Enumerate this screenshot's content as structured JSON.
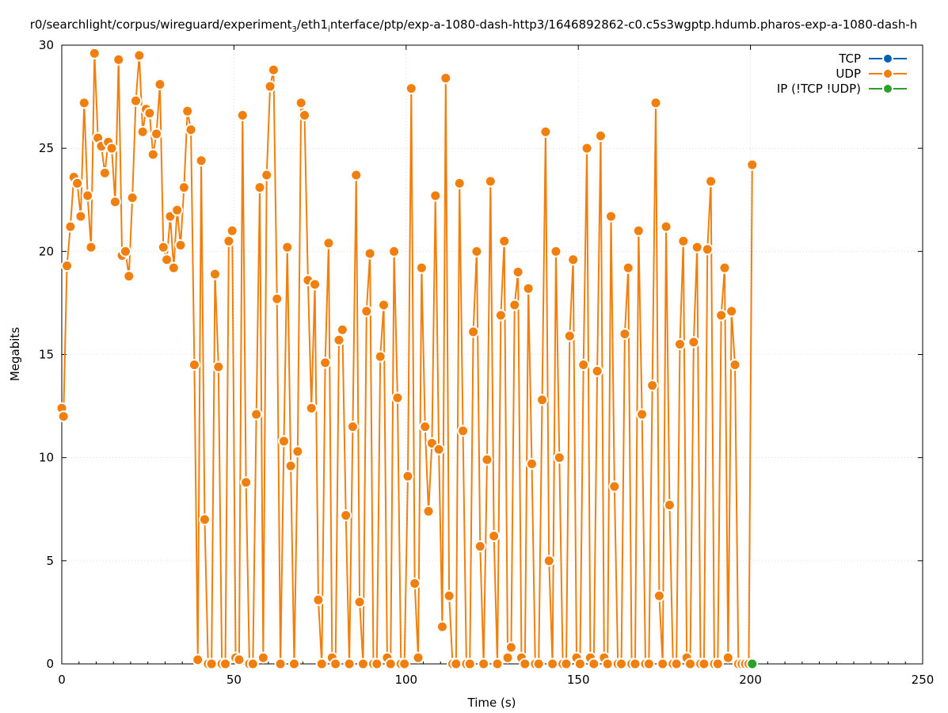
{
  "chart_data": {
    "type": "line",
    "title_prefix": "r0/searchlight/corpus/wireguard/experiment",
    "title_sub": "3",
    "title_mid": "/eth1",
    "title_sub2": "i",
    "title_suffix": "nterface/ptp/exp-a-1080-dash-http3/1646892862-c0.c5s3wgptp.hdumb.pharos-exp-a-1080-dash-h",
    "xlabel": "Time (s)",
    "ylabel": "Megabits",
    "xlim": [
      0,
      250
    ],
    "ylim": [
      0,
      30
    ],
    "xticks": [
      "0",
      "50",
      "100",
      "150",
      "200",
      "250"
    ],
    "yticks": [
      "0",
      "5",
      "10",
      "15",
      "20",
      "25",
      "30"
    ],
    "grid": true,
    "legend_position": "top-right",
    "series": [
      {
        "name": "TCP",
        "color": "#0060ad",
        "points": []
      },
      {
        "name": "UDP",
        "color": "#f07f0e",
        "points": [
          [
            0,
            12.4
          ],
          [
            0.5,
            12.0
          ],
          [
            1.5,
            19.3
          ],
          [
            2.5,
            21.2
          ],
          [
            3.5,
            23.6
          ],
          [
            4.5,
            23.3
          ],
          [
            5.5,
            21.7
          ],
          [
            6.5,
            27.2
          ],
          [
            7.5,
            22.7
          ],
          [
            8.5,
            20.2
          ],
          [
            9.5,
            29.6
          ],
          [
            10.5,
            25.5
          ],
          [
            11.5,
            25.1
          ],
          [
            12.5,
            23.8
          ],
          [
            13.5,
            25.3
          ],
          [
            14.5,
            25.0
          ],
          [
            15.5,
            22.4
          ],
          [
            16.5,
            29.3
          ],
          [
            17.5,
            19.8
          ],
          [
            18.5,
            20.0
          ],
          [
            19.5,
            18.8
          ],
          [
            20.5,
            22.6
          ],
          [
            21.5,
            27.3
          ],
          [
            22.5,
            29.5
          ],
          [
            23.5,
            25.8
          ],
          [
            24.5,
            26.9
          ],
          [
            25.5,
            26.7
          ],
          [
            26.5,
            24.7
          ],
          [
            27.5,
            25.7
          ],
          [
            28.5,
            28.1
          ],
          [
            29.5,
            20.2
          ],
          [
            30.5,
            19.6
          ],
          [
            31.5,
            21.7
          ],
          [
            32.5,
            19.2
          ],
          [
            33.5,
            22.0
          ],
          [
            34.5,
            20.3
          ],
          [
            35.5,
            23.1
          ],
          [
            36.5,
            26.8
          ],
          [
            37.5,
            25.9
          ],
          [
            38.5,
            14.5
          ],
          [
            39.5,
            0.2
          ],
          [
            40.5,
            24.4
          ],
          [
            41.5,
            7.0
          ],
          [
            42.5,
            0
          ],
          [
            43.5,
            0
          ],
          [
            44.5,
            18.9
          ],
          [
            45.5,
            14.4
          ],
          [
            46.5,
            0
          ],
          [
            47.5,
            0
          ],
          [
            48.5,
            20.5
          ],
          [
            49.5,
            21.0
          ],
          [
            50.5,
            0.3
          ],
          [
            51.5,
            0.2
          ],
          [
            52.5,
            26.6
          ],
          [
            53.5,
            8.8
          ],
          [
            54.5,
            0
          ],
          [
            55.5,
            0
          ],
          [
            56.5,
            12.1
          ],
          [
            57.5,
            23.1
          ],
          [
            58.5,
            0.3
          ],
          [
            59.5,
            23.7
          ],
          [
            60.5,
            28.0
          ],
          [
            61.5,
            28.8
          ],
          [
            62.5,
            17.7
          ],
          [
            63.5,
            0
          ],
          [
            64.5,
            10.8
          ],
          [
            65.5,
            20.2
          ],
          [
            66.5,
            9.6
          ],
          [
            67.5,
            0
          ],
          [
            68.5,
            10.3
          ],
          [
            69.5,
            27.2
          ],
          [
            70.5,
            26.6
          ],
          [
            71.5,
            18.6
          ],
          [
            72.5,
            12.4
          ],
          [
            73.5,
            18.4
          ],
          [
            74.5,
            3.1
          ],
          [
            75.5,
            0
          ],
          [
            76.5,
            14.6
          ],
          [
            77.5,
            20.4
          ],
          [
            78.5,
            0.3
          ],
          [
            79.5,
            0
          ],
          [
            80.5,
            15.7
          ],
          [
            81.5,
            16.2
          ],
          [
            82.5,
            7.2
          ],
          [
            83.5,
            0
          ],
          [
            84.5,
            11.5
          ],
          [
            85.5,
            23.7
          ],
          [
            86.5,
            3.0
          ],
          [
            87.5,
            0
          ],
          [
            88.5,
            17.1
          ],
          [
            89.5,
            19.9
          ],
          [
            90.5,
            0
          ],
          [
            91.5,
            0
          ],
          [
            92.5,
            14.9
          ],
          [
            93.5,
            17.4
          ],
          [
            94.5,
            0.3
          ],
          [
            95.5,
            0
          ],
          [
            96.5,
            20.0
          ],
          [
            97.5,
            12.9
          ],
          [
            98.5,
            0
          ],
          [
            99.5,
            0
          ],
          [
            100.5,
            9.1
          ],
          [
            101.5,
            27.9
          ],
          [
            102.5,
            3.9
          ],
          [
            103.5,
            0.3
          ],
          [
            104.5,
            19.2
          ],
          [
            105.5,
            11.5
          ],
          [
            106.5,
            7.4
          ],
          [
            107.5,
            10.7
          ],
          [
            108.5,
            22.7
          ],
          [
            109.5,
            10.4
          ],
          [
            110.5,
            1.8
          ],
          [
            111.5,
            28.4
          ],
          [
            112.5,
            3.3
          ],
          [
            113.5,
            0
          ],
          [
            114.5,
            0
          ],
          [
            115.5,
            23.3
          ],
          [
            116.5,
            11.3
          ],
          [
            117.5,
            0
          ],
          [
            118.5,
            0
          ],
          [
            119.5,
            16.1
          ],
          [
            120.5,
            20.0
          ],
          [
            121.5,
            5.7
          ],
          [
            122.5,
            0
          ],
          [
            123.5,
            9.9
          ],
          [
            124.5,
            23.4
          ],
          [
            125.5,
            6.2
          ],
          [
            126.5,
            0
          ],
          [
            127.5,
            16.9
          ],
          [
            128.5,
            20.5
          ],
          [
            129.5,
            0.3
          ],
          [
            130.5,
            0.8
          ],
          [
            131.5,
            17.4
          ],
          [
            132.5,
            19.0
          ],
          [
            133.5,
            0.3
          ],
          [
            134.5,
            0
          ],
          [
            135.5,
            18.2
          ],
          [
            136.5,
            9.7
          ],
          [
            137.5,
            0
          ],
          [
            138.5,
            0
          ],
          [
            139.5,
            12.8
          ],
          [
            140.5,
            25.8
          ],
          [
            141.5,
            5.0
          ],
          [
            142.5,
            0
          ],
          [
            143.5,
            20.0
          ],
          [
            144.5,
            10.0
          ],
          [
            145.5,
            0
          ],
          [
            146.5,
            0
          ],
          [
            147.5,
            15.9
          ],
          [
            148.5,
            19.6
          ],
          [
            149.5,
            0.3
          ],
          [
            150.5,
            0
          ],
          [
            151.5,
            14.5
          ],
          [
            152.5,
            25.0
          ],
          [
            153.5,
            0.3
          ],
          [
            154.5,
            0
          ],
          [
            155.5,
            14.2
          ],
          [
            156.5,
            25.6
          ],
          [
            157.5,
            0.3
          ],
          [
            158.5,
            0
          ],
          [
            159.5,
            21.7
          ],
          [
            160.5,
            8.6
          ],
          [
            161.5,
            0
          ],
          [
            162.5,
            0
          ],
          [
            163.5,
            16.0
          ],
          [
            164.5,
            19.2
          ],
          [
            165.5,
            0
          ],
          [
            166.5,
            0
          ],
          [
            167.5,
            21.0
          ],
          [
            168.5,
            12.1
          ],
          [
            169.5,
            0
          ],
          [
            170.5,
            0
          ],
          [
            171.5,
            13.5
          ],
          [
            172.5,
            27.2
          ],
          [
            173.5,
            3.3
          ],
          [
            174.5,
            0
          ],
          [
            175.5,
            21.2
          ],
          [
            176.5,
            7.7
          ],
          [
            177.5,
            0
          ],
          [
            178.5,
            0
          ],
          [
            179.5,
            15.5
          ],
          [
            180.5,
            20.5
          ],
          [
            181.5,
            0.3
          ],
          [
            182.5,
            0
          ],
          [
            183.5,
            15.6
          ],
          [
            184.5,
            20.2
          ],
          [
            185.5,
            0
          ],
          [
            186.5,
            0
          ],
          [
            187.5,
            20.1
          ],
          [
            188.5,
            23.4
          ],
          [
            189.5,
            0
          ],
          [
            190.5,
            0
          ],
          [
            191.5,
            16.9
          ],
          [
            192.5,
            19.2
          ],
          [
            193.5,
            0.3
          ],
          [
            194.5,
            17.1
          ],
          [
            195.5,
            14.5
          ],
          [
            196.5,
            0
          ],
          [
            197.5,
            0
          ],
          [
            198.5,
            0
          ],
          [
            199.5,
            0
          ],
          [
            200.5,
            24.2
          ]
        ]
      },
      {
        "name": "IP (!TCP  !UDP)",
        "color": "#2ca02c",
        "points": [
          [
            200.5,
            0
          ]
        ]
      }
    ]
  }
}
